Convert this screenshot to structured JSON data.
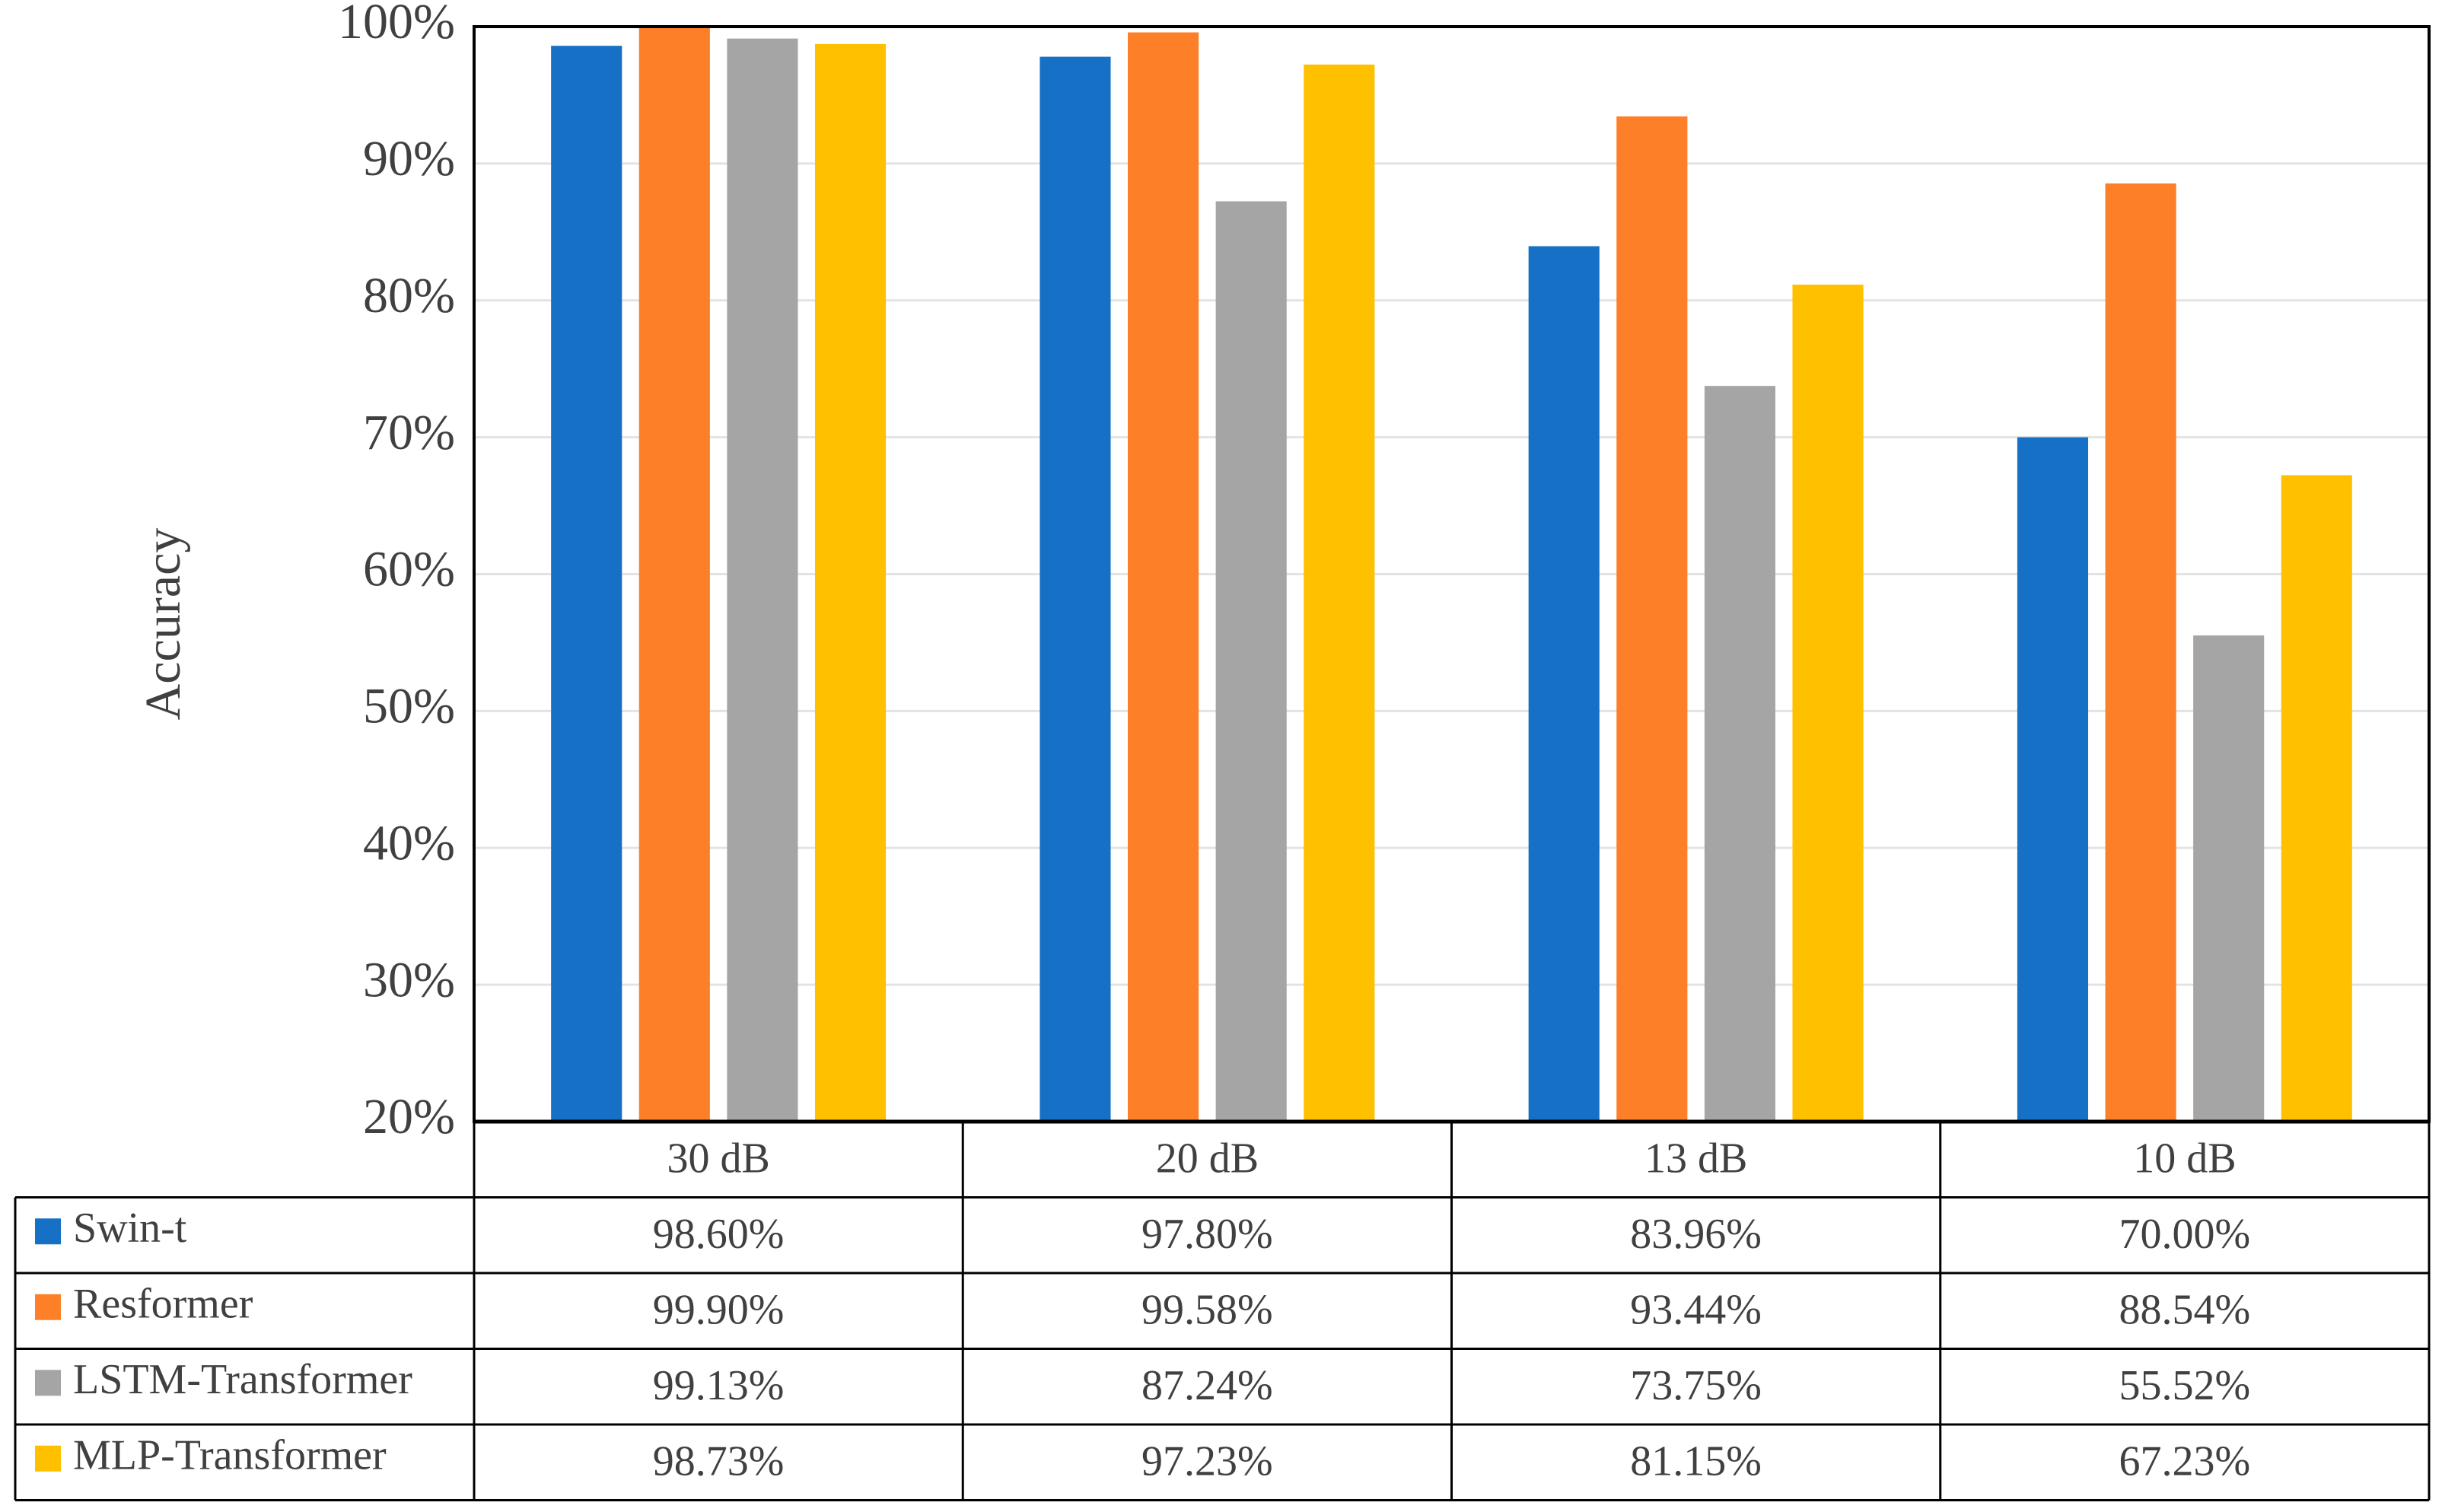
{
  "chart_data": {
    "type": "bar",
    "y_label": "Accuracy",
    "categories": [
      "30 dB",
      "20 dB",
      "13 dB",
      "10 dB"
    ],
    "series": [
      {
        "name": "Swin-t",
        "color": "#1570c6",
        "values": [
          98.6,
          97.8,
          83.96,
          70.0
        ],
        "value_labels": [
          "98.60%",
          "97.80%",
          "83.96%",
          "70.00%"
        ]
      },
      {
        "name": "Resformer",
        "color": "#fd7f27",
        "values": [
          99.9,
          99.58,
          93.44,
          88.54
        ],
        "value_labels": [
          "99.90%",
          "99.58%",
          "93.44%",
          "88.54%"
        ]
      },
      {
        "name": "LSTM-Transformer",
        "color": "#a5a5a5",
        "values": [
          99.13,
          87.24,
          73.75,
          55.52
        ],
        "value_labels": [
          "99.13%",
          "87.24%",
          "73.75%",
          "55.52%"
        ]
      },
      {
        "name": "MLP-Transformer",
        "color": "#ffc000",
        "values": [
          98.73,
          97.23,
          81.15,
          67.23
        ],
        "value_labels": [
          "98.73%",
          "97.23%",
          "81.15%",
          "67.23%"
        ]
      }
    ],
    "ylim": [
      20,
      100
    ],
    "yticks": [
      {
        "value": 20,
        "label": "20%"
      },
      {
        "value": 30,
        "label": "30%"
      },
      {
        "value": 40,
        "label": "40%"
      },
      {
        "value": 50,
        "label": "50%"
      },
      {
        "value": 60,
        "label": "60%"
      },
      {
        "value": 70,
        "label": "70%"
      },
      {
        "value": 80,
        "label": "80%"
      },
      {
        "value": 90,
        "label": "90%"
      },
      {
        "value": 100,
        "label": "100%"
      }
    ],
    "grid": true
  }
}
